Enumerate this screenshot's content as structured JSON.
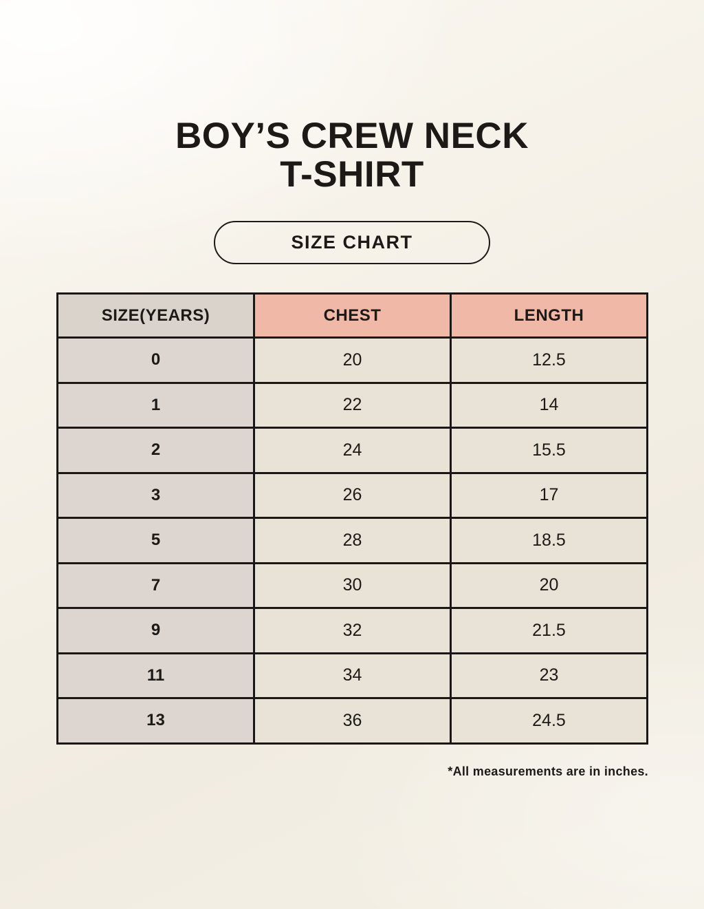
{
  "header": {
    "title_line1": "BOY’S CREW NECK",
    "title_line2": "T-SHIRT",
    "badge_label": "SIZE CHART"
  },
  "table": {
    "columns": [
      "SIZE(YEARS)",
      "CHEST",
      "LENGTH"
    ],
    "rows": [
      {
        "size": "0",
        "chest": "20",
        "length": "12.5"
      },
      {
        "size": "1",
        "chest": "22",
        "length": "14"
      },
      {
        "size": "2",
        "chest": "24",
        "length": "15.5"
      },
      {
        "size": "3",
        "chest": "26",
        "length": "17"
      },
      {
        "size": "5",
        "chest": "28",
        "length": "18.5"
      },
      {
        "size": "7",
        "chest": "30",
        "length": "20"
      },
      {
        "size": "9",
        "chest": "32",
        "length": "21.5"
      },
      {
        "size": "11",
        "chest": "34",
        "length": "23"
      },
      {
        "size": "13",
        "chest": "36",
        "length": "24.5"
      }
    ]
  },
  "footnote": "*All measurements are in inches.",
  "colors": {
    "background": "#f5f1e8",
    "header_pink": "#f0b8a6",
    "header_gray": "#d9d3cc",
    "size_column_bg": "#ddd6d0",
    "cell_cream": "#e9e2d6",
    "border": "#1a1714",
    "text": "#1c1916"
  }
}
